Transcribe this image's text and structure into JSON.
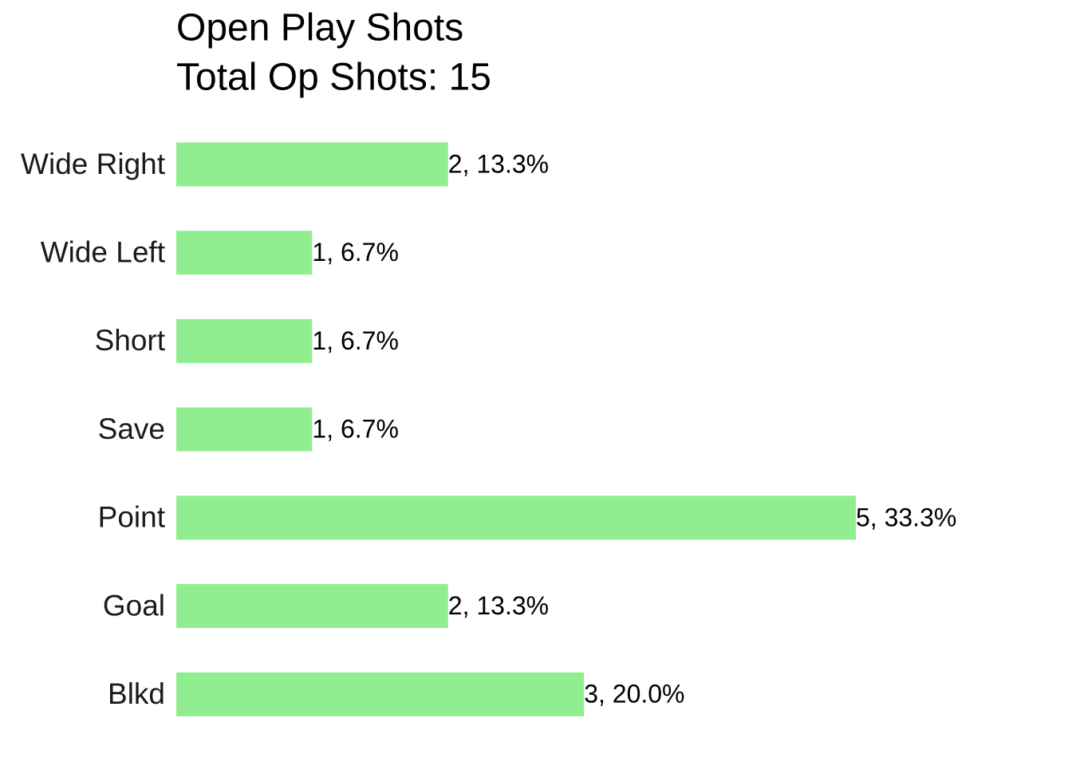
{
  "chart_data": {
    "type": "bar",
    "orientation": "horizontal",
    "title": "Open Play Shots",
    "subtitle": "Total Op Shots: 15",
    "categories": [
      "Wide Right",
      "Wide Left",
      "Short",
      "Save",
      "Point",
      "Goal",
      "Blkd"
    ],
    "values": [
      2,
      1,
      1,
      1,
      5,
      2,
      3
    ],
    "value_labels": [
      "2, 13.3%",
      "1, 6.7%",
      "1, 6.7%",
      "1, 6.7%",
      "5, 33.3%",
      "2, 13.3%",
      "3, 20.0%"
    ],
    "color": "#90ee90",
    "grid": false
  }
}
